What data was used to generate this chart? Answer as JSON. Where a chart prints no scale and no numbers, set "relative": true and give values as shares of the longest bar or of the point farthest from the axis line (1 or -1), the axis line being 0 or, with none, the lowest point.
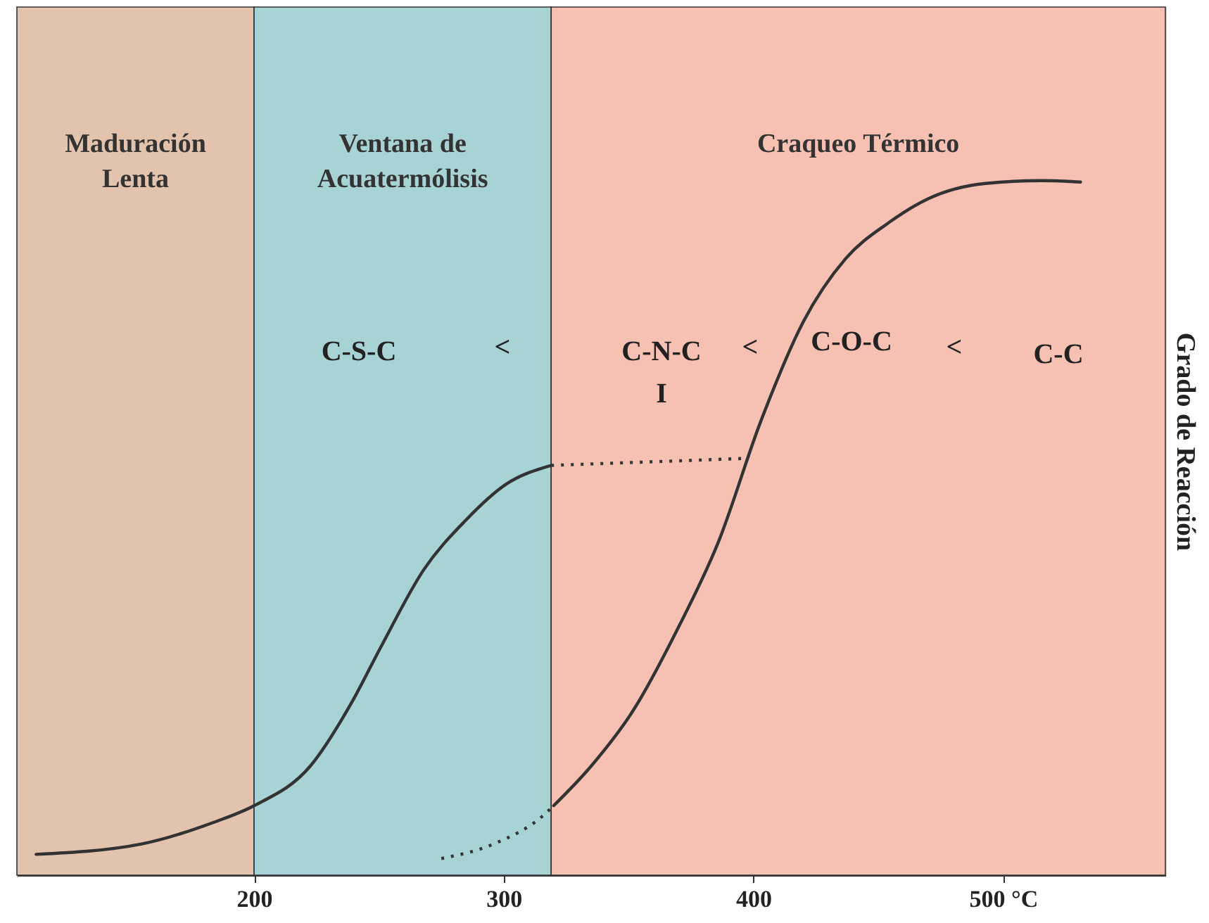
{
  "chart_data": {
    "type": "line",
    "relative": true,
    "ylabel": "Grado de Reacción",
    "xlim": [
      105,
      565
    ],
    "xticks": [
      200,
      300,
      {
        "value": 400,
        "label": "400"
      },
      {
        "value": 500,
        "label": "500 °C"
      }
    ],
    "bands": [
      {
        "axis": "x",
        "from": 105,
        "to": 200,
        "label": "Maduración\nLenta",
        "color": "#e3c3ad"
      },
      {
        "axis": "x",
        "from": 200,
        "to": 319,
        "label": "Ventana de\nAcuatermólisis",
        "color": "#a8d3d5"
      },
      {
        "axis": "x",
        "from": 319,
        "to": 565,
        "label": "Craqueo Térmico",
        "color": "#f6c1b3"
      }
    ],
    "series": [
      {
        "color": "#333333",
        "line_style": "solid",
        "x": [
          112.7,
          155,
          183,
          200,
          222.5,
          239,
          251,
          268,
          284.5,
          301,
          319
        ],
        "values": [
          0.03,
          0.045,
          0.075,
          0.1,
          0.157,
          0.248,
          0.33,
          0.44,
          0.51,
          0.563,
          0.59
        ]
      },
      {
        "color": "#333333",
        "line_style": "dotted",
        "x": [
          319,
          396
        ],
        "values": [
          0.59,
          0.6
        ]
      },
      {
        "color": "#333333",
        "line_style": "dotted",
        "x": [
          275,
          296,
          315.5,
          320
        ],
        "values": [
          0.024,
          0.045,
          0.085,
          0.1
        ]
      },
      {
        "color": "#333333",
        "line_style": "solid",
        "x": [
          320,
          335,
          352,
          369,
          386,
          403,
          420,
          437,
          454,
          470,
          493,
          515.5,
          531
        ],
        "values": [
          0.1,
          0.157,
          0.238,
          0.35,
          0.48,
          0.654,
          0.797,
          0.888,
          0.939,
          0.974,
          0.996,
          1.0,
          0.998
        ]
      }
    ],
    "annotations": [
      "C-S-C",
      "<",
      "C-N-C",
      "I",
      "<",
      "C-O-C",
      "<",
      "C-C"
    ]
  }
}
